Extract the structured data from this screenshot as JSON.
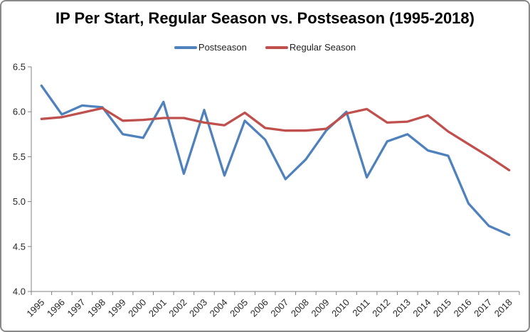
{
  "chart_data": {
    "type": "line",
    "title": "IP Per Start, Regular Season vs. Postseason (1995-2018)",
    "categories": [
      "1995",
      "1996",
      "1997",
      "1998",
      "1999",
      "2000",
      "2001",
      "2002",
      "2003",
      "2004",
      "2005",
      "2006",
      "2007",
      "2008",
      "2009",
      "2010",
      "2011",
      "2012",
      "2013",
      "2014",
      "2015",
      "2016",
      "2017",
      "2018"
    ],
    "series": [
      {
        "name": "Postseason",
        "color": "#4F81BD",
        "values": [
          6.29,
          5.97,
          6.07,
          6.05,
          5.75,
          5.71,
          6.11,
          5.31,
          6.02,
          5.29,
          5.9,
          5.69,
          5.25,
          5.47,
          5.79,
          6.0,
          5.27,
          5.67,
          5.75,
          5.57,
          5.51,
          4.98,
          4.73,
          4.63
        ]
      },
      {
        "name": "Regular Season",
        "color": "#C0504D",
        "values": [
          5.92,
          5.94,
          5.99,
          6.04,
          5.9,
          5.91,
          5.93,
          5.93,
          5.88,
          5.85,
          5.99,
          5.82,
          5.79,
          5.79,
          5.81,
          5.98,
          6.03,
          5.88,
          5.89,
          5.96,
          5.78,
          5.64,
          5.5,
          5.35
        ]
      }
    ],
    "xlabel": "",
    "ylabel": "",
    "ylim": [
      4.0,
      6.5
    ],
    "yticks": [
      4.0,
      4.5,
      5.0,
      5.5,
      6.0,
      6.5
    ],
    "grid": false,
    "legend_position": "top",
    "axis_color": "#808080",
    "tick_label_color": "#262626"
  }
}
